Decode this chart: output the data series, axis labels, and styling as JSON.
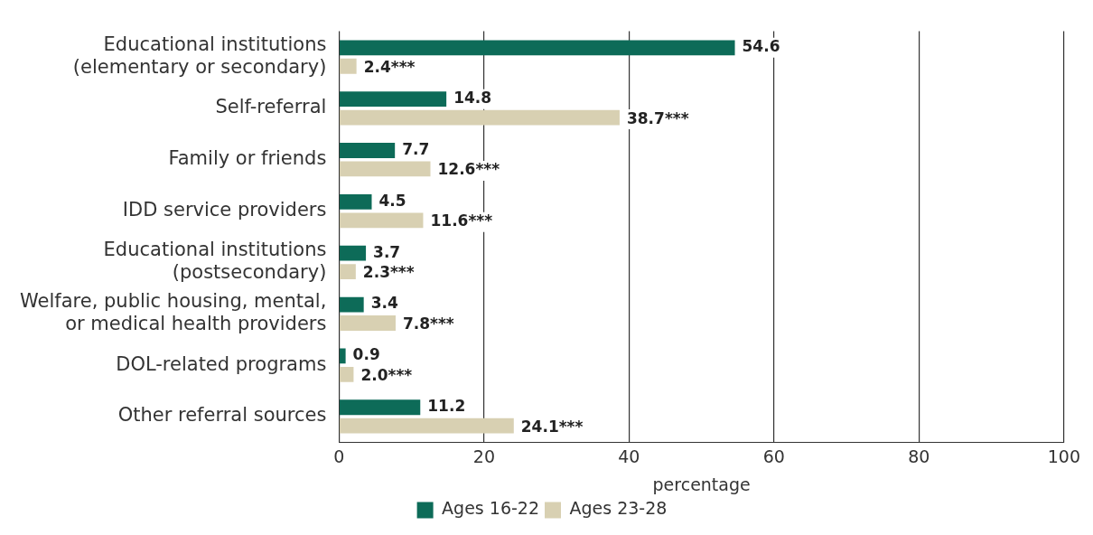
{
  "chart_data": {
    "type": "bar",
    "orientation": "horizontal",
    "xlabel": "percentage",
    "categories": [
      "Educational institutions (elementary or secondary)",
      "Self-referral",
      "Family or friends",
      "IDD service providers",
      "Educational institutions (postsecondary)",
      "Welfare, public housing, mental, or medical health providers",
      "DOL-related programs",
      "Other referral sources"
    ],
    "series": [
      {
        "name": "Ages 16-22",
        "color": "#0d6b58",
        "values": [
          54.6,
          14.8,
          7.7,
          4.5,
          3.7,
          3.4,
          0.9,
          11.2
        ],
        "value_labels": [
          "54.6",
          "14.8",
          "7.7",
          "4.5",
          "3.7",
          "3.4",
          "0.9",
          "11.2"
        ]
      },
      {
        "name": "Ages 23-28",
        "color": "#d8d0b2",
        "values": [
          2.4,
          38.7,
          12.6,
          11.6,
          2.3,
          7.8,
          2.0,
          24.1
        ],
        "value_labels": [
          "2.4***",
          "38.7***",
          "12.6***",
          "11.6***",
          "2.3***",
          "7.8***",
          "2.0***",
          "24.1***"
        ]
      }
    ],
    "xlim": [
      0,
      100
    ],
    "xticks": [
      0,
      20,
      40,
      60,
      80,
      100
    ],
    "grid": "x",
    "legend": "bottom"
  }
}
